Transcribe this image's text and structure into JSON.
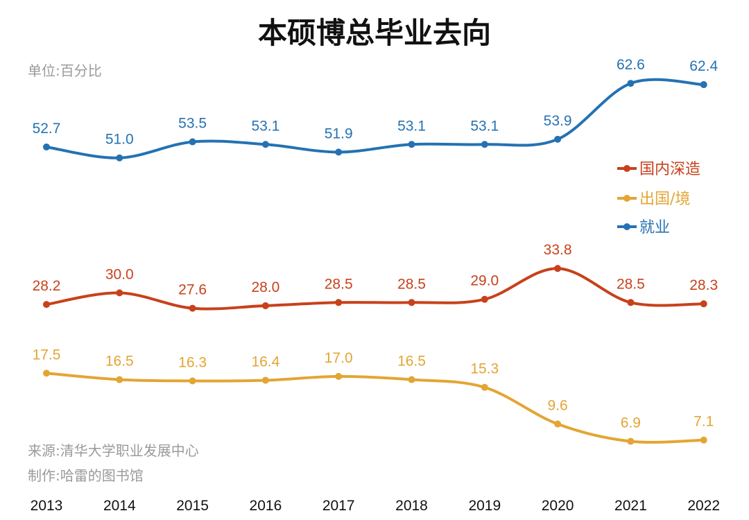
{
  "chart_data": {
    "type": "line",
    "title": "本硕博总毕业去向",
    "unit_note": "单位:百分比",
    "source_note": "来源:清华大学职业发展中心",
    "author_note": "制作:哈雷的图书馆",
    "categories": [
      "2013",
      "2014",
      "2015",
      "2016",
      "2017",
      "2018",
      "2019",
      "2020",
      "2021",
      "2022"
    ],
    "legend_position": "right",
    "grid": false,
    "series": [
      {
        "name": "国内深造",
        "color": "#c8411b",
        "values": [
          28.2,
          30.0,
          27.6,
          28.0,
          28.5,
          28.5,
          29.0,
          33.8,
          28.5,
          28.3
        ],
        "labels": [
          "28.2",
          "30.0",
          "27.6",
          "28.0",
          "28.5",
          "28.5",
          "29.0",
          "33.8",
          "28.5",
          "28.3"
        ]
      },
      {
        "name": "出国/境",
        "color": "#e3a534",
        "values": [
          17.5,
          16.5,
          16.3,
          16.4,
          17.0,
          16.5,
          15.3,
          9.6,
          6.9,
          7.1
        ],
        "labels": [
          "17.5",
          "16.5",
          "16.3",
          "16.4",
          "17.0",
          "16.5",
          "15.3",
          "9.6",
          "6.9",
          "7.1"
        ]
      },
      {
        "name": "就业",
        "color": "#2472b3",
        "values": [
          52.7,
          51.0,
          53.5,
          53.1,
          51.9,
          53.1,
          53.1,
          53.9,
          62.6,
          62.4
        ],
        "labels": [
          "52.7",
          "51.0",
          "53.5",
          "53.1",
          "51.9",
          "53.1",
          "53.1",
          "53.9",
          "62.6",
          "62.4"
        ]
      }
    ]
  }
}
